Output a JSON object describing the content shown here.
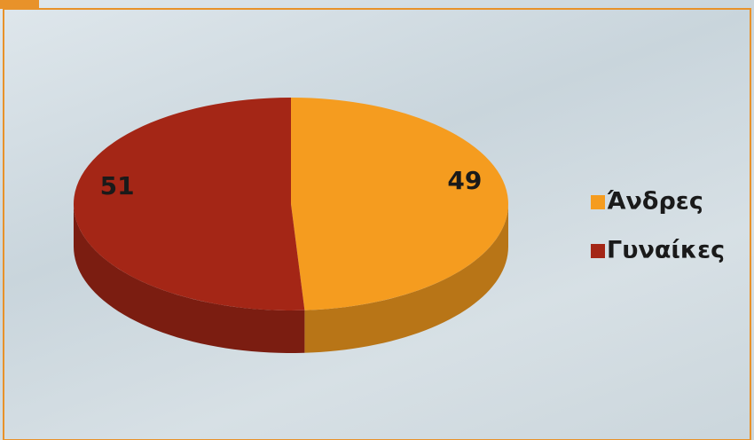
{
  "chart_data": {
    "type": "pie",
    "categories": [
      "Άνδρες",
      "Γυναίκες"
    ],
    "values": [
      49,
      51
    ],
    "colors": [
      "#f59c1f",
      "#a42616"
    ],
    "legend": "right"
  }
}
